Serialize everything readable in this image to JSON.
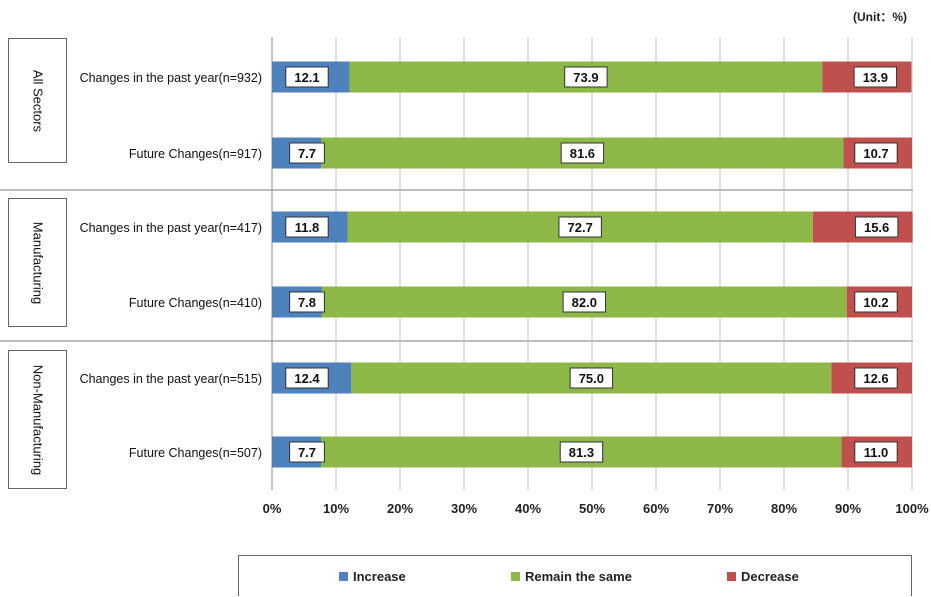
{
  "unit_note": "(Unit：%)",
  "colors": {
    "increase": "#4f81bd",
    "same": "#8db848",
    "decrease": "#c0504d"
  },
  "groups": [
    "All Sectors",
    "Manufacturing",
    "Non-Manufacturing"
  ],
  "legend": [
    "Increase",
    "Remain the same",
    "Decrease"
  ],
  "chart_data": {
    "type": "bar",
    "orientation": "horizontal",
    "stacked": true,
    "categories": [
      "Changes in the past year(n=932)",
      "Future Changes(n=917)",
      "Changes in the past year(n=417)",
      "Future Changes(n=410)",
      "Changes in the past year(n=515)",
      "Future Changes(n=507)"
    ],
    "series": [
      {
        "name": "Increase",
        "values": [
          12.1,
          7.7,
          11.8,
          7.8,
          12.4,
          7.7
        ]
      },
      {
        "name": "Remain the same",
        "values": [
          73.9,
          81.6,
          72.7,
          82.0,
          75.0,
          81.3
        ]
      },
      {
        "name": "Decrease",
        "values": [
          13.9,
          10.7,
          15.6,
          10.2,
          12.6,
          11.0
        ]
      }
    ],
    "xticks": [
      "0%",
      "10%",
      "20%",
      "30%",
      "40%",
      "50%",
      "60%",
      "70%",
      "80%",
      "90%",
      "100%"
    ],
    "xlim": [
      0,
      100
    ],
    "grid": true,
    "legend_position": "bottom"
  }
}
